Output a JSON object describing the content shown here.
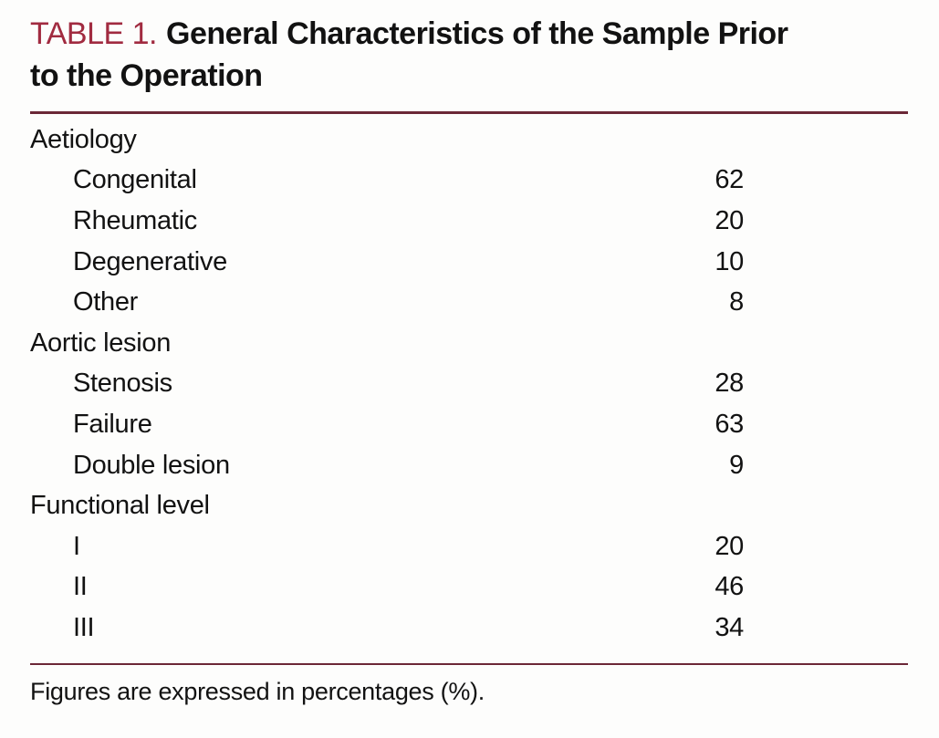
{
  "title": {
    "label": "TABLE 1.",
    "line1": "General Characteristics of the Sample Prior",
    "line2": "to the Operation"
  },
  "colors": {
    "accent_label": "#a12b40",
    "rule": "#6b2737",
    "text": "#121212"
  },
  "table": {
    "rows": [
      {
        "label": "Aetiology",
        "value": "",
        "indent": false
      },
      {
        "label": "Congenital",
        "value": "62",
        "indent": true
      },
      {
        "label": "Rheumatic",
        "value": "20",
        "indent": true
      },
      {
        "label": "Degenerative",
        "value": "10",
        "indent": true
      },
      {
        "label": "Other",
        "value": "8",
        "indent": true
      },
      {
        "label": "Aortic lesion",
        "value": "",
        "indent": false
      },
      {
        "label": "Stenosis",
        "value": "28",
        "indent": true
      },
      {
        "label": "Failure",
        "value": "63",
        "indent": true
      },
      {
        "label": "Double lesion",
        "value": "9",
        "indent": true
      },
      {
        "label": "Functional level",
        "value": "",
        "indent": false
      },
      {
        "label": "I",
        "value": "20",
        "indent": true
      },
      {
        "label": "II",
        "value": "46",
        "indent": true
      },
      {
        "label": "III",
        "value": "34",
        "indent": true
      }
    ]
  },
  "footnote": "Figures are expressed in percentages (%)."
}
